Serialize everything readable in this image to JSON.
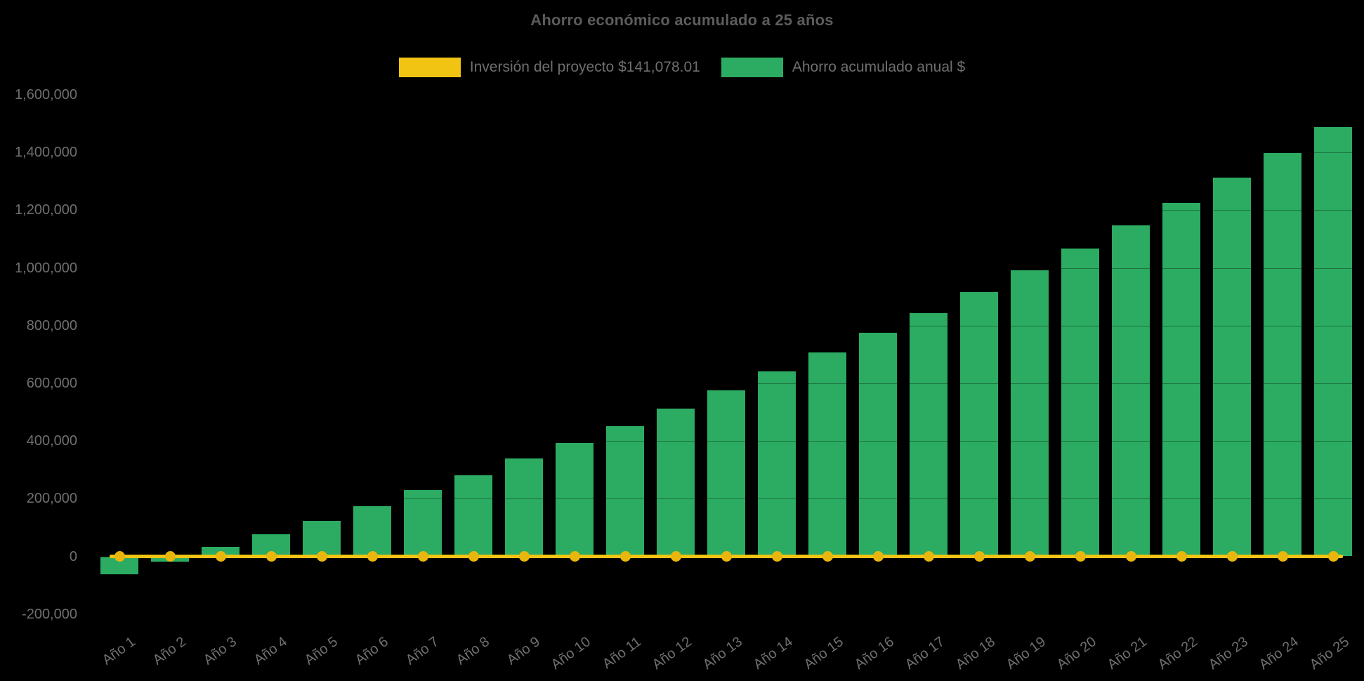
{
  "title": "Ahorro económico acumulado a 25 años",
  "legend": {
    "items": [
      {
        "label": "Inversión del proyecto $141,078.01",
        "color": "#F1C413"
      },
      {
        "label": "Ahorro acumulado anual $",
        "color": "#2BAC62"
      }
    ]
  },
  "y_axis": {
    "tick_labels": [
      "1,600,000",
      "1,400,000",
      "1,200,000",
      "1,000,000",
      "800,000",
      "600,000",
      "400,000",
      "200,000",
      "0",
      "-200,000"
    ]
  },
  "x_axis": {
    "tick_labels": [
      "Año 1",
      "Año 2",
      "Año 3",
      "Año 4",
      "Año 5",
      "Año 6",
      "Año 7",
      "Año 8",
      "Año 9",
      "Año 10",
      "Año 11",
      "Año 12",
      "Año 13",
      "Año 14",
      "Año 15",
      "Año 16",
      "Año 17",
      "Año 18",
      "Año 19",
      "Año 20",
      "Año 21",
      "Año 22",
      "Año 23",
      "Año 24",
      "Año 25"
    ],
    "label_prefix": "Año"
  },
  "chart_data": {
    "type": "bar",
    "title": "Ahorro económico acumulado a 25 años",
    "categories": [
      "Año 1",
      "Año 2",
      "Año 3",
      "Año 4",
      "Año 5",
      "Año 6",
      "Año 7",
      "Año 8",
      "Año 9",
      "Año 10",
      "Año 11",
      "Año 12",
      "Año 13",
      "Año 14",
      "Año 15",
      "Año 16",
      "Año 17",
      "Año 18",
      "Año 19",
      "Año 20",
      "Año 21",
      "Año 22",
      "Año 23",
      "Año 24",
      "Año 25"
    ],
    "series": [
      {
        "name": "Ahorro acumulado anual $",
        "type": "bar",
        "color": "#2BAC62",
        "values": [
          -62000,
          -18000,
          33000,
          77000,
          124000,
          175000,
          230000,
          282000,
          339000,
          393000,
          452000,
          513000,
          575000,
          641000,
          706000,
          775000,
          844000,
          915000,
          991000,
          1066000,
          1147000,
          1226000,
          1312000,
          1398000,
          1488000
        ]
      },
      {
        "name": "Inversión del proyecto $141,078.01",
        "type": "line",
        "color": "#F1C413",
        "marker": "circle",
        "marker_color": "#E8B60C",
        "investment_amount": 141078.01,
        "values": [
          0,
          0,
          0,
          0,
          0,
          0,
          0,
          0,
          0,
          0,
          0,
          0,
          0,
          0,
          0,
          0,
          0,
          0,
          0,
          0,
          0,
          0,
          0,
          0,
          0
        ]
      }
    ],
    "ylim": [
      -200000,
      1600000
    ],
    "ytick_step": 200000,
    "xlabel": "",
    "ylabel": "",
    "grid": false,
    "legend_position": "top"
  },
  "colors": {
    "background": "#000000",
    "bar": "#2BAC62",
    "line": "#F1C413",
    "marker": "#E8B60C",
    "tick_text": "#6f6f6f",
    "title_text": "#5c5c5c"
  }
}
